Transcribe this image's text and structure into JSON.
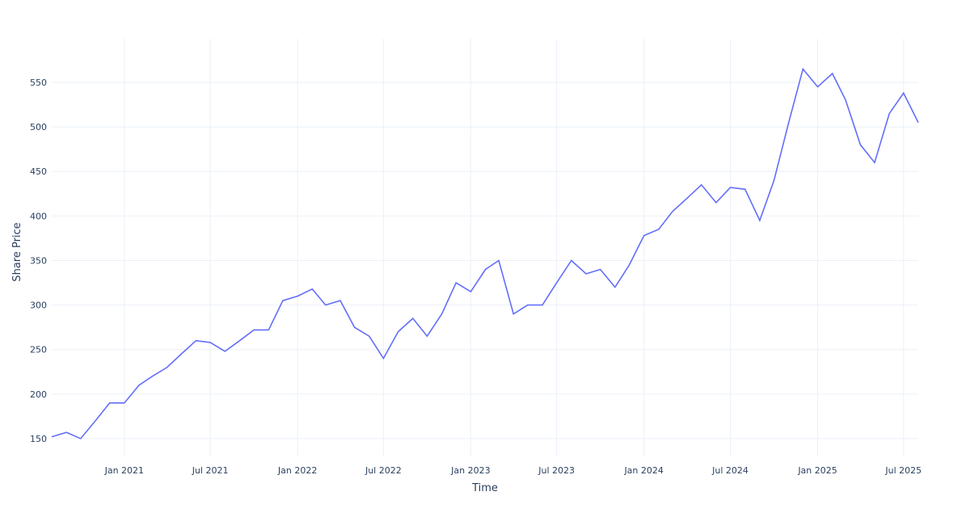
{
  "chart_data": {
    "type": "line",
    "x_label": "Time",
    "y_label": "Share Price",
    "x": [
      "2020-08",
      "2020-09",
      "2020-10",
      "2020-11",
      "2020-12",
      "2021-01",
      "2021-02",
      "2021-03",
      "2021-04",
      "2021-05",
      "2021-06",
      "2021-07",
      "2021-08",
      "2021-09",
      "2021-10",
      "2021-11",
      "2021-12",
      "2022-01",
      "2022-02",
      "2022-03",
      "2022-04",
      "2022-05",
      "2022-06",
      "2022-07",
      "2022-08",
      "2022-09",
      "2022-10",
      "2022-11",
      "2022-12",
      "2023-01",
      "2023-02",
      "2023-03",
      "2023-04",
      "2023-05",
      "2023-06",
      "2023-07",
      "2023-08",
      "2023-09",
      "2023-10",
      "2023-11",
      "2023-12",
      "2024-01",
      "2024-02",
      "2024-03",
      "2024-04",
      "2024-05",
      "2024-06",
      "2024-07",
      "2024-08",
      "2024-09",
      "2024-10",
      "2024-11",
      "2024-12",
      "2025-01",
      "2025-02",
      "2025-03",
      "2025-04",
      "2025-05",
      "2025-06",
      "2025-07",
      "2025-08"
    ],
    "series": [
      {
        "color": "#636efa",
        "values": [
          152,
          157,
          150,
          170,
          190,
          190,
          210,
          220,
          230,
          245,
          260,
          258,
          248,
          260,
          272,
          272,
          305,
          310,
          318,
          300,
          305,
          275,
          265,
          240,
          270,
          285,
          265,
          290,
          325,
          315,
          340,
          350,
          290,
          300,
          300,
          325,
          350,
          335,
          340,
          320,
          345,
          378,
          385,
          405,
          420,
          435,
          415,
          432,
          430,
          395,
          440,
          505,
          565,
          545,
          560,
          530,
          480,
          460,
          515,
          538,
          505
        ]
      }
    ],
    "xlim": [
      "2020-08",
      "2025-08"
    ],
    "xticks": [
      {
        "value": "2021-01",
        "label": "Jan 2021"
      },
      {
        "value": "2021-07",
        "label": "Jul 2021"
      },
      {
        "value": "2022-01",
        "label": "Jan 2022"
      },
      {
        "value": "2022-07",
        "label": "Jul 2022"
      },
      {
        "value": "2023-01",
        "label": "Jan 2023"
      },
      {
        "value": "2023-07",
        "label": "Jul 2023"
      },
      {
        "value": "2024-01",
        "label": "Jan 2024"
      },
      {
        "value": "2024-07",
        "label": "Jul 2024"
      },
      {
        "value": "2025-01",
        "label": "Jan 2025"
      },
      {
        "value": "2025-07",
        "label": "Jul 2025"
      }
    ],
    "ylim": [
      130,
      599
    ],
    "yticks": [
      150,
      200,
      250,
      300,
      350,
      400,
      450,
      500,
      550
    ],
    "grid": true
  }
}
